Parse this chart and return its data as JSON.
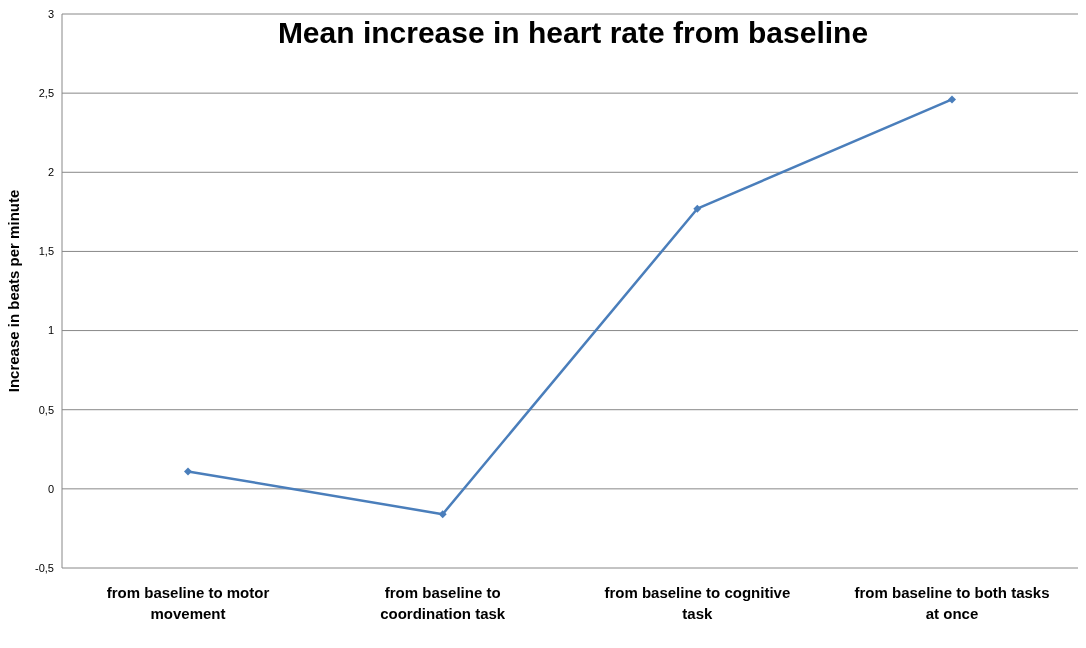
{
  "chart_data": {
    "type": "line",
    "title": "Mean increase in heart rate from baseline",
    "ylabel": "Increase in beats per minute",
    "categories": [
      "from baseline to motor movement",
      "from baseline to coordination task",
      "from baseline to cognitive task",
      "from baseline to both tasks at once"
    ],
    "series": [
      {
        "color": "#4a7ebb",
        "values": [
          0.11,
          -0.16,
          1.77,
          2.46
        ]
      }
    ],
    "ylim": [
      -0.5,
      3
    ],
    "yticks": [
      {
        "value": -0.5,
        "label": "-0,5"
      },
      0,
      {
        "value": 0.5,
        "label": "0,5"
      },
      1,
      {
        "value": 1.5,
        "label": "1,5"
      },
      2,
      {
        "value": 2.5,
        "label": "2,5"
      },
      3
    ],
    "grid": "y",
    "marker": "diamond",
    "line_style": "solid",
    "legend": false
  }
}
